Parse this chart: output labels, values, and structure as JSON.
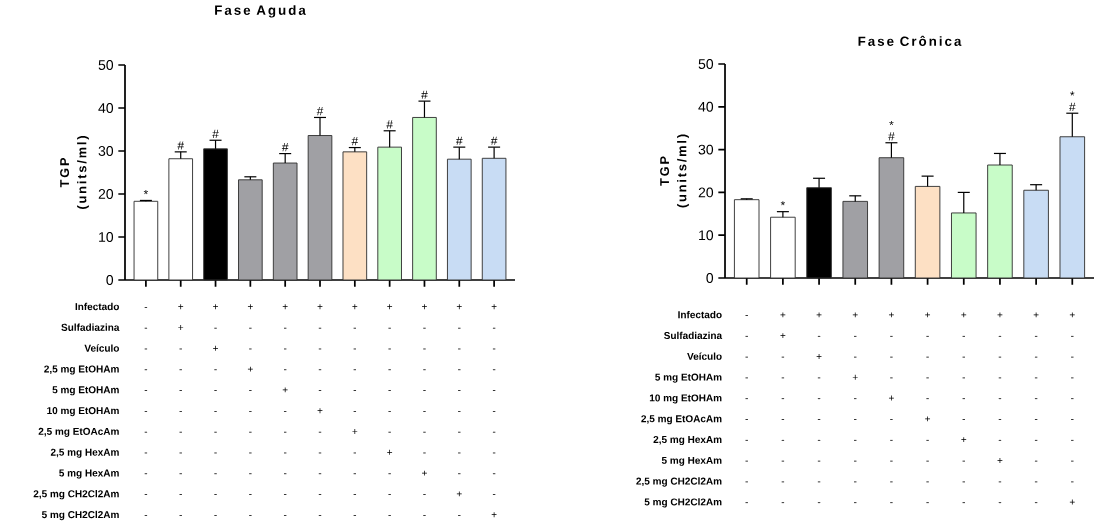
{
  "chart_data": [
    {
      "type": "bar",
      "title": "Fase Aguda",
      "ylabel": "TGP (units/ml)",
      "categories": [
        "- - - - - - - - - - -",
        "+ + - - - - - - - - -",
        "+ - + - - - - - - - -",
        "+ - - + - - - - - - -",
        "+ - - - + - - - - - -",
        "+ - - - - + - - - - -",
        "+ - - - - - + - - - -",
        "+ - - - - - - + - - -",
        "+ - - - - - - - + - -",
        "+ - - - - - - - - + -",
        "+ - - - - - - - - - +"
      ],
      "values": [
        18.3,
        28.2,
        30.5,
        23.3,
        27.2,
        33.6,
        29.8,
        30.9,
        37.8,
        28.1,
        28.3
      ],
      "errors": [
        [
          18.3,
          18.5
        ],
        [
          28.2,
          29.8
        ],
        [
          30.5,
          32.5
        ],
        [
          23.3,
          24.0
        ],
        [
          27.2,
          29.4
        ],
        [
          33.6,
          37.8
        ],
        [
          29.8,
          30.8
        ],
        [
          30.9,
          34.7
        ],
        [
          37.8,
          41.6
        ],
        [
          28.1,
          30.9
        ],
        [
          28.3,
          30.9
        ]
      ],
      "colors": [
        "#ffffff",
        "#ffffff",
        "#000000",
        "#a0a0a4",
        "#a0a0a4",
        "#a0a0a4",
        "#fde0c4",
        "#c8fcc8",
        "#c8fcc8",
        "#c8dcf4",
        "#c8dcf4"
      ],
      "ylim": [
        0,
        50
      ],
      "yticks": [
        0,
        10,
        20,
        30,
        40,
        50
      ],
      "annotations": [
        {
          "text": "*",
          "x": "- - - - - - - - - - -",
          "y": 18.5
        },
        {
          "text": "#",
          "x": "+ + - - - - - - - - -",
          "y": 29.8
        },
        {
          "text": "#",
          "x": "+ - + - - - - - - - -",
          "y": 32.5
        },
        {
          "text": "#",
          "x": "+ - - - + - - - - - -",
          "y": 29.4
        },
        {
          "text": "#",
          "x": "+ - - - - + - - - - -",
          "y": 37.8
        },
        {
          "text": "#",
          "x": "+ - - - - - + - - - -",
          "y": 30.8
        },
        {
          "text": "#",
          "x": "+ - - - - - - + - - -",
          "y": 34.7
        },
        {
          "text": "#",
          "x": "+ - - - - - - - + - -",
          "y": 41.6
        },
        {
          "text": "#",
          "x": "+ - - - - - - - - + -",
          "y": 30.9
        },
        {
          "text": "#",
          "x": "+ - - - - - - - - - +",
          "y": 30.9
        },
        "Infectado",
        "Sulfadiazina",
        "Veículo",
        "2,5 mg EtOHAm",
        "5 mg EtOHAm",
        "10 mg EtOHAm",
        "2,5 mg EtOAcAm",
        "2,5 mg HexAm",
        "5 mg HexAm",
        "2,5 mg CH2Cl2Am",
        "5 mg CH2Cl2Am"
      ]
    },
    {
      "type": "bar",
      "title": "Fase Crônica",
      "ylabel": "TGP (units/ml)",
      "categories": [
        "- - - - - - - - - -",
        "+ + - - - - - - - -",
        "+ - + - - - - - - -",
        "+ - - + - - - - - -",
        "+ - - - + - - - - -",
        "+ - - - - + - - - -",
        "+ - - - - - + - - -",
        "+ - - - - - - + - -",
        "+ - - - - - - - - -",
        "+ - - - - - - - - +"
      ],
      "values": [
        18.3,
        14.2,
        21.1,
        17.9,
        28.1,
        21.4,
        15.2,
        26.4,
        20.5,
        33.0
      ],
      "errors": [
        [
          18.3,
          18.5
        ],
        [
          14.2,
          15.5
        ],
        [
          21.1,
          23.3
        ],
        [
          17.9,
          19.2
        ],
        [
          28.1,
          31.6
        ],
        [
          21.4,
          23.8
        ],
        [
          15.2,
          20.0
        ],
        [
          26.4,
          29.1
        ],
        [
          20.5,
          21.8
        ],
        [
          33.0,
          38.5
        ]
      ],
      "colors": [
        "#ffffff",
        "#ffffff",
        "#000000",
        "#a0a0a4",
        "#a0a0a4",
        "#fde0c4",
        "#c8fcc8",
        "#c8fcc8",
        "#c8dcf4",
        "#c8dcf4"
      ],
      "ylim": [
        0,
        50
      ],
      "yticks": [
        0,
        10,
        20,
        30,
        40,
        50
      ],
      "annotations": [
        {
          "text": "*",
          "x": "+ + - - - - - - - -",
          "y": 15.5
        },
        {
          "text": "#",
          "x": "+ - - - + - - - - -",
          "y": 31.6
        },
        {
          "text": "*",
          "x": "+ - - - + - - - - -",
          "y": 31.6
        },
        {
          "text": "#",
          "x": "+ - - - - - - - - +",
          "y": 38.5
        },
        {
          "text": "*",
          "x": "+ - - - - - - - - +",
          "y": 38.5
        },
        "Infectado",
        "Sulfadiazina",
        "Veículo",
        "5 mg EtOHAm",
        "10 mg EtOHAm",
        "2,5 mg EtOAcAm",
        "2,5 mg HexAm",
        "5 mg HexAm",
        "2,5 mg CH2Cl2Am",
        "5 mg CH2Cl2Am"
      ]
    }
  ]
}
